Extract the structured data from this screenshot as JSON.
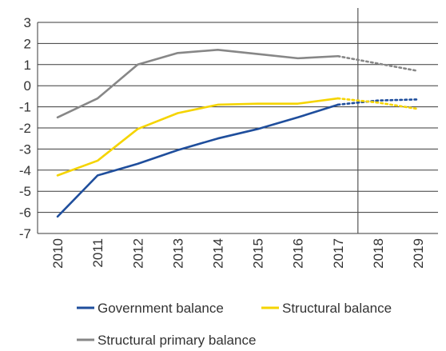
{
  "chart_data": {
    "type": "line",
    "title": "",
    "xlabel": "",
    "ylabel": "",
    "categories": [
      "2010",
      "2011",
      "2012",
      "2013",
      "2014",
      "2015",
      "2016",
      "2017",
      "2018",
      "2019"
    ],
    "ylim": [
      -7,
      3
    ],
    "yticks": [
      "3",
      "2",
      "1",
      "0",
      "-1",
      "-2",
      "-3",
      "-4",
      "-5",
      "-6",
      "-7"
    ],
    "grid": true,
    "legend_position": "bottom",
    "forecast_divider_after": "2017",
    "series": [
      {
        "name": "Government balance",
        "color": "#1f4e9c",
        "values": [
          -6.2,
          -4.25,
          -3.7,
          -3.05,
          -2.5,
          -2.05,
          -1.5,
          -0.9,
          -0.7,
          -0.65
        ],
        "projected_from": "2017"
      },
      {
        "name": "Structural balance",
        "color": "#f5d400",
        "values": [
          -4.25,
          -3.55,
          -2.05,
          -1.3,
          -0.9,
          -0.85,
          -0.85,
          -0.6,
          -0.8,
          -1.1
        ],
        "projected_from": "2017"
      },
      {
        "name": "Structural primary balance",
        "color": "#878787",
        "values": [
          -1.5,
          -0.6,
          1.0,
          1.55,
          1.7,
          1.5,
          1.3,
          1.4,
          1.05,
          0.7
        ],
        "projected_from": "2017"
      }
    ]
  }
}
